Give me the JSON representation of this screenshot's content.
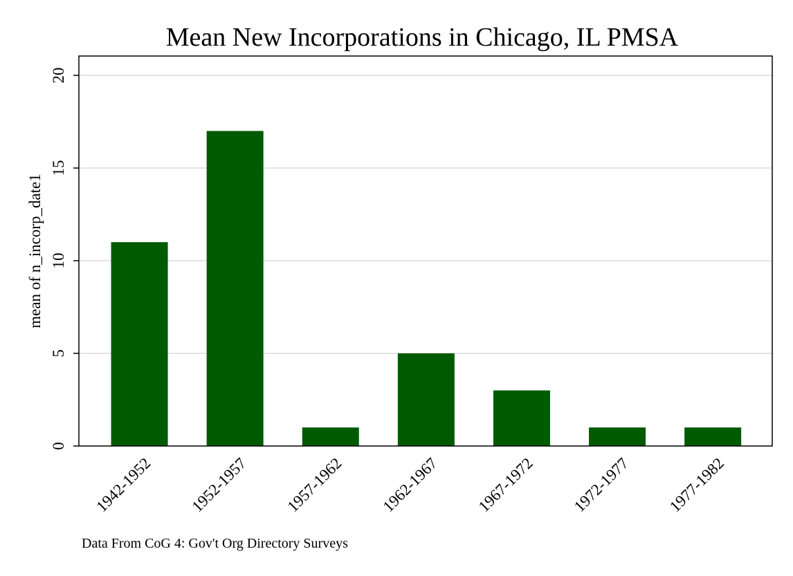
{
  "chart_data": {
    "type": "bar",
    "title": "Mean New Incorporations in Chicago, IL PMSA",
    "xlabel": "",
    "ylabel": "mean of n_incorp_date1",
    "categories": [
      "1942-1952",
      "1952-1957",
      "1957-1962",
      "1962-1967",
      "1967-1972",
      "1972-1977",
      "1977-1982"
    ],
    "values": [
      11,
      17,
      1,
      5,
      3,
      1,
      1
    ],
    "ylim": [
      0,
      21
    ],
    "yticks": [
      0,
      5,
      10,
      15,
      20
    ],
    "ytick_labels": [
      "0",
      "5",
      "10",
      "15",
      "20"
    ],
    "grid": true,
    "legend": "none",
    "note": "Data From CoG 4: Gov't Org Directory Surveys",
    "colors": {
      "bar": "#005a00",
      "grid": "#dcdcdc",
      "axis": "#000000",
      "background": "#ffffff"
    }
  }
}
